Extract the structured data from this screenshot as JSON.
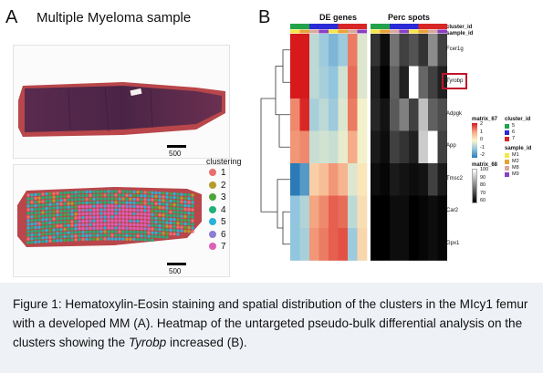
{
  "panel_a": {
    "letter": "A",
    "title": "Multiple Myeloma sample",
    "he_label": "Hematoxylin-Eosin",
    "scale_top": "500",
    "scale_bottom": "500",
    "clustering_title": "clustering",
    "clusters": [
      {
        "label": "1",
        "color": "#e86f6f"
      },
      {
        "label": "2",
        "color": "#b59c2c"
      },
      {
        "label": "3",
        "color": "#4fa33a"
      },
      {
        "label": "4",
        "color": "#20b07a"
      },
      {
        "label": "5",
        "color": "#29b2d6"
      },
      {
        "label": "6",
        "color": "#8b7fd4"
      },
      {
        "label": "7",
        "color": "#dd5fb8"
      }
    ]
  },
  "panel_b": {
    "letter": "B",
    "header_left": "DE genes",
    "header_right": "Perc spots",
    "cluster_id_label": "cluster_id",
    "sample_id_label": "sample_id",
    "genes": [
      "Fcer1g",
      "Tyrobp",
      "Adpgk",
      "App",
      "Tmsc2",
      "Car2",
      "Gpx1"
    ],
    "highlighted_gene": "Tyrobp",
    "legend_matrix67": {
      "title": "matrix_67",
      "ticks": [
        "2",
        "1",
        "0",
        "-1",
        "-2"
      ]
    },
    "legend_matrix68": {
      "title": "matrix_68",
      "ticks": [
        "100",
        "90",
        "80",
        "70",
        "60"
      ]
    },
    "legend_cluster": {
      "title": "cluster_id",
      "items": [
        {
          "label": "5",
          "color": "#22a34a"
        },
        {
          "label": "6",
          "color": "#2b2bd6"
        },
        {
          "label": "7",
          "color": "#d82626"
        }
      ]
    },
    "legend_sample": {
      "title": "sample_id",
      "items": [
        {
          "label": "M1",
          "color": "#f5e64a"
        },
        {
          "label": "M2",
          "color": "#e8a23a"
        },
        {
          "label": "M8",
          "color": "#d9a9a0"
        },
        {
          "label": "M9",
          "color": "#8b3fc2"
        }
      ]
    }
  },
  "caption": {
    "part1": "Figure 1: Hematoxylin-Eosin staining and spatial distribution of the clusters in the MIcy1 femur with a developed MM (A). Heatmap of the untargeted pseudo-bulk differential analysis on the clusters showing the ",
    "gene": "Tyrobp",
    "part2": " increased (B)."
  }
}
